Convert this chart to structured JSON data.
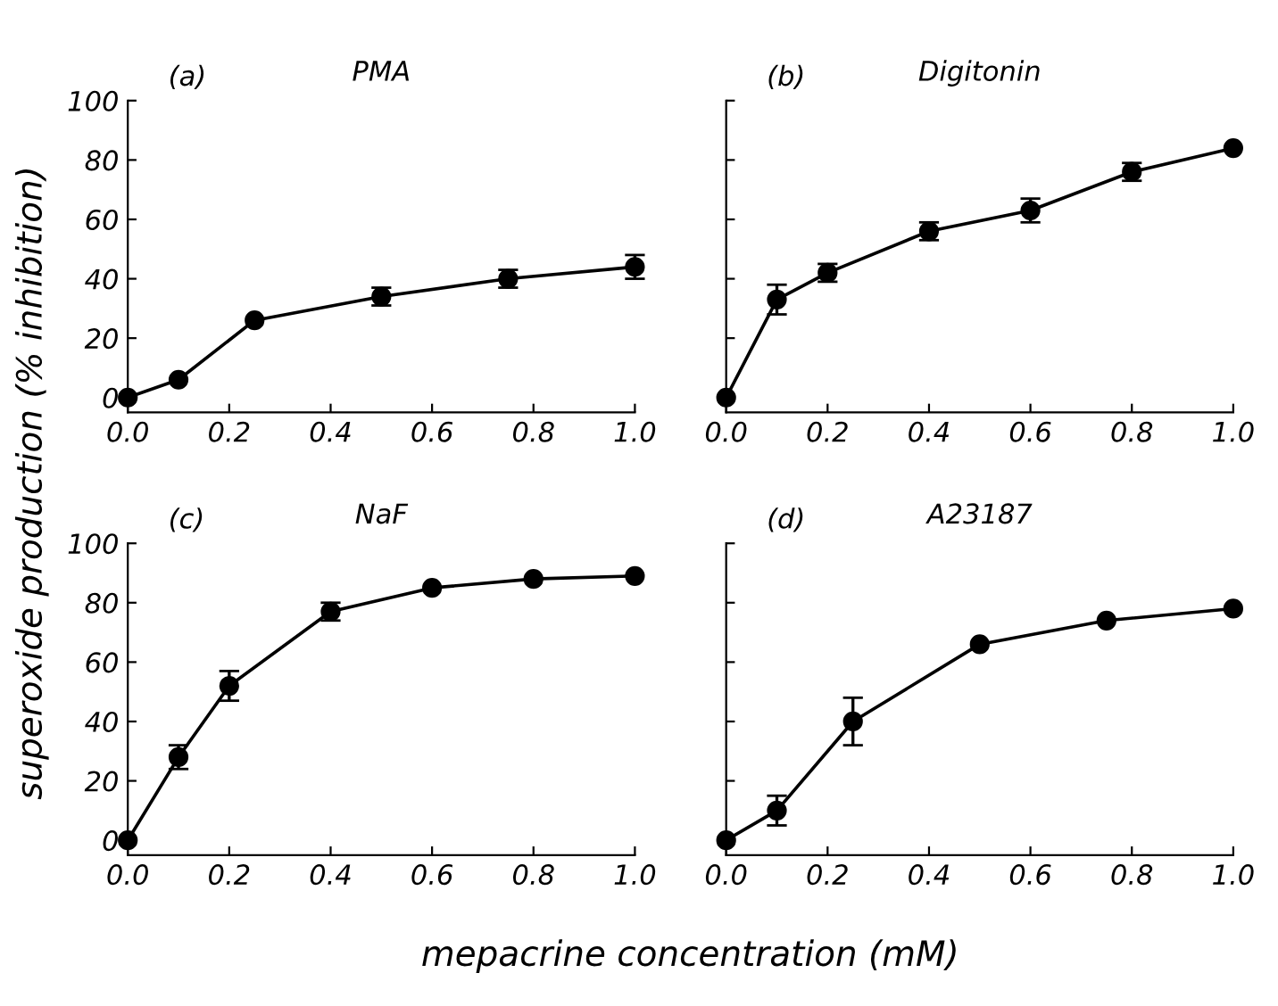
{
  "chart_data": [
    {
      "type": "line",
      "title": "PMA",
      "annotations": [
        "(a)"
      ],
      "ylabel": "superoxide production (% inhibition)",
      "x": [
        0,
        0.1,
        0.25,
        0.5,
        0.75,
        1.0
      ],
      "series": [
        {
          "color": "#000000",
          "values": [
            0,
            6,
            26,
            34,
            40,
            44
          ],
          "errors": [
            null,
            null,
            null,
            3,
            3,
            4
          ]
        }
      ],
      "xlim": [
        0,
        1.0
      ],
      "ylim": [
        -5,
        100
      ],
      "xticks": [
        {
          "value": 0,
          "label": "0.0"
        },
        {
          "value": 0.2,
          "label": "0.2"
        },
        {
          "value": 0.4,
          "label": "0.4"
        },
        {
          "value": 0.6,
          "label": "0.6"
        },
        {
          "value": 0.8,
          "label": "0.8"
        },
        {
          "value": 1.0,
          "label": "1.0"
        }
      ],
      "yticks": [
        0,
        20,
        40,
        60,
        80,
        100
      ],
      "marker": "circle",
      "line_style": "solid",
      "grid": false,
      "legend": false
    },
    {
      "type": "line",
      "title": "Digitonin",
      "annotations": [
        "(b)"
      ],
      "x": [
        0,
        0.1,
        0.2,
        0.4,
        0.6,
        0.8,
        1.0
      ],
      "series": [
        {
          "color": "#000000",
          "values": [
            0,
            33,
            42,
            56,
            63,
            76,
            84
          ],
          "errors": [
            null,
            5,
            3,
            3,
            4,
            3,
            null
          ]
        }
      ],
      "xlim": [
        0,
        1.0
      ],
      "ylim": [
        -5,
        100
      ],
      "xticks": [
        {
          "value": 0,
          "label": "0.0"
        },
        {
          "value": 0.2,
          "label": "0.2"
        },
        {
          "value": 0.4,
          "label": "0.4"
        },
        {
          "value": 0.6,
          "label": "0.6"
        },
        {
          "value": 0.8,
          "label": "0.8"
        },
        {
          "value": 1.0,
          "label": "1.0"
        }
      ],
      "yticks": [
        {
          "value": 0,
          "label": null
        },
        {
          "value": 20,
          "label": null
        },
        {
          "value": 40,
          "label": null
        },
        {
          "value": 60,
          "label": null
        },
        {
          "value": 80,
          "label": null
        },
        {
          "value": 100,
          "label": null
        }
      ],
      "tick_labels": "x",
      "marker": "circle",
      "line_style": "solid",
      "grid": false,
      "legend": false
    },
    {
      "type": "line",
      "title": "NaF",
      "annotations": [
        "(c)"
      ],
      "xlabel": "mepacrine concentration (mM)",
      "x": [
        0,
        0.1,
        0.2,
        0.4,
        0.6,
        0.8,
        1.0
      ],
      "series": [
        {
          "color": "#000000",
          "values": [
            0,
            28,
            52,
            77,
            85,
            88,
            89
          ],
          "errors": [
            null,
            4,
            5,
            3,
            null,
            null,
            null
          ]
        }
      ],
      "xlim": [
        0,
        1.0
      ],
      "ylim": [
        -5,
        100
      ],
      "xticks": [
        {
          "value": 0,
          "label": "0.0"
        },
        {
          "value": 0.2,
          "label": "0.2"
        },
        {
          "value": 0.4,
          "label": "0.4"
        },
        {
          "value": 0.6,
          "label": "0.6"
        },
        {
          "value": 0.8,
          "label": "0.8"
        },
        {
          "value": 1.0,
          "label": "1.0"
        }
      ],
      "yticks": [
        0,
        20,
        40,
        60,
        80,
        100
      ],
      "marker": "circle",
      "line_style": "solid",
      "grid": false,
      "legend": false
    },
    {
      "type": "line",
      "title": "A23187",
      "annotations": [
        "(d)"
      ],
      "x": [
        0,
        0.1,
        0.25,
        0.5,
        0.75,
        1.0
      ],
      "series": [
        {
          "color": "#000000",
          "values": [
            0,
            10,
            40,
            66,
            74,
            78
          ],
          "errors": [
            null,
            5,
            8,
            null,
            null,
            null
          ]
        }
      ],
      "xlim": [
        0,
        1.0
      ],
      "ylim": [
        -5,
        100
      ],
      "xticks": [
        {
          "value": 0,
          "label": "0.0"
        },
        {
          "value": 0.2,
          "label": "0.2"
        },
        {
          "value": 0.4,
          "label": "0.4"
        },
        {
          "value": 0.6,
          "label": "0.6"
        },
        {
          "value": 0.8,
          "label": "0.8"
        },
        {
          "value": 1.0,
          "label": "1.0"
        }
      ],
      "yticks": [
        {
          "value": 0,
          "label": null
        },
        {
          "value": 20,
          "label": null
        },
        {
          "value": 40,
          "label": null
        },
        {
          "value": 60,
          "label": null
        },
        {
          "value": 80,
          "label": null
        },
        {
          "value": 100,
          "label": null
        }
      ],
      "tick_labels": "x",
      "marker": "circle",
      "line_style": "solid",
      "grid": false,
      "legend": false
    }
  ]
}
